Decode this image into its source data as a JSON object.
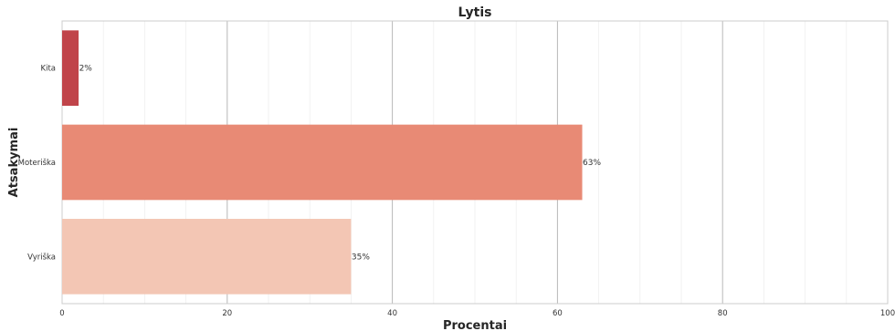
{
  "chart_data": {
    "type": "bar",
    "orientation": "horizontal",
    "title": "Lytis",
    "xlabel": "Procentai",
    "ylabel": "Atsakymai",
    "categories": [
      "Kita",
      "Moteriška",
      "Vyriška"
    ],
    "values": [
      2,
      63,
      35
    ],
    "value_labels": [
      "2%",
      "63%",
      "35%"
    ],
    "colors": [
      "#c0444a",
      "#e88a75",
      "#f3c6b4"
    ],
    "xlim": [
      0,
      100
    ],
    "xticks": [
      0,
      20,
      40,
      60,
      80,
      100
    ],
    "xtick_labels": [
      "0",
      "20",
      "40",
      "60",
      "80",
      "100"
    ],
    "grid": true,
    "minor_grid": true
  }
}
